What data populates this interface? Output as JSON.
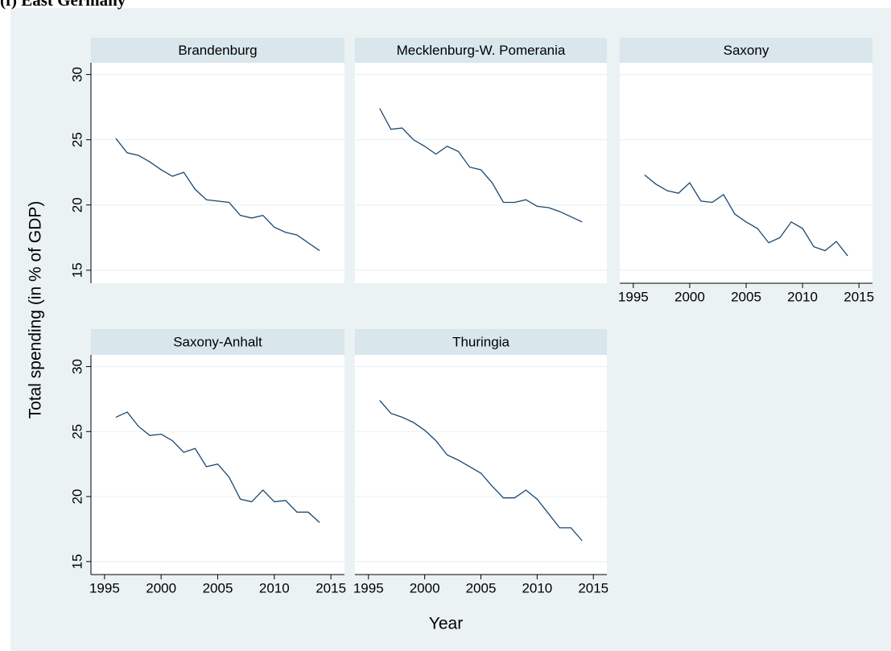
{
  "chart_data": {
    "type": "line",
    "title": "(f) East Germany",
    "xlabel": "Year",
    "ylabel": "Total spending (in % of GDP)",
    "x": [
      1996,
      1997,
      1998,
      1999,
      2000,
      2001,
      2002,
      2003,
      2004,
      2005,
      2006,
      2007,
      2008,
      2009,
      2010,
      2011,
      2012,
      2013,
      2014
    ],
    "xlim": [
      1993.8,
      2016.2
    ],
    "xticks": [
      1995,
      2000,
      2005,
      2010,
      2015
    ],
    "ylim": [
      14,
      30.9
    ],
    "yticks": [
      15,
      20,
      25,
      30
    ],
    "grid": true,
    "color": "#1a476f",
    "panels": [
      {
        "title": "Brandenburg",
        "values": [
          25.1,
          24.0,
          23.8,
          23.3,
          22.7,
          22.2,
          22.5,
          21.2,
          20.4,
          20.3,
          20.2,
          19.2,
          19.0,
          19.2,
          18.3,
          17.9,
          17.7,
          17.1,
          16.5
        ]
      },
      {
        "title": "Mecklenburg-W. Pomerania",
        "values": [
          27.4,
          25.8,
          25.9,
          25.0,
          24.5,
          23.9,
          24.5,
          24.1,
          22.9,
          22.7,
          21.7,
          20.2,
          20.2,
          20.4,
          19.9,
          19.8,
          19.5,
          19.1,
          18.7
        ]
      },
      {
        "title": "Saxony",
        "values": [
          22.3,
          21.6,
          21.1,
          20.9,
          21.7,
          20.3,
          20.2,
          20.8,
          19.3,
          18.7,
          18.2,
          17.1,
          17.5,
          18.7,
          18.2,
          16.8,
          16.5,
          17.2,
          16.1
        ]
      },
      {
        "title": "Saxony-Anhalt",
        "values": [
          26.1,
          26.5,
          25.4,
          24.7,
          24.8,
          24.3,
          23.4,
          23.7,
          22.3,
          22.5,
          21.5,
          19.8,
          19.6,
          20.5,
          19.6,
          19.7,
          18.8,
          18.8,
          18.0
        ]
      },
      {
        "title": "Thuringia",
        "values": [
          27.4,
          26.4,
          26.1,
          25.7,
          25.1,
          24.3,
          23.2,
          22.8,
          22.3,
          21.8,
          20.8,
          19.9,
          19.9,
          20.5,
          19.8,
          18.7,
          17.6,
          17.6,
          16.6
        ]
      }
    ]
  }
}
